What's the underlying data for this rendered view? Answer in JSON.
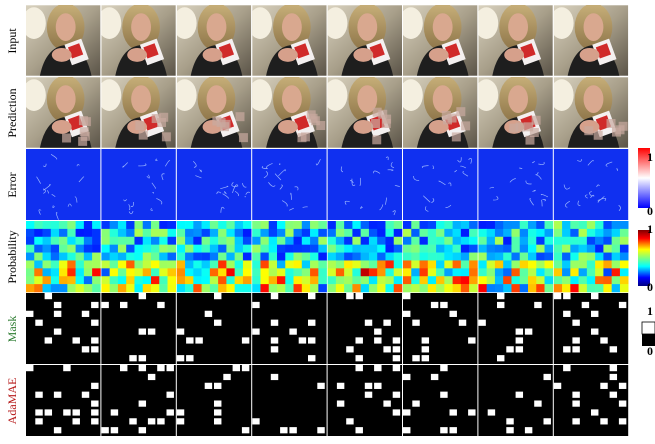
{
  "row_labels": [
    "Input",
    "Prediction",
    "Error",
    "Probability",
    "Mask",
    "AdaMAE"
  ],
  "colorbars": [
    {
      "max": "1",
      "min": "0"
    },
    {
      "max": "1",
      "min": "0"
    },
    {
      "max": "1",
      "min": "0"
    }
  ]
}
